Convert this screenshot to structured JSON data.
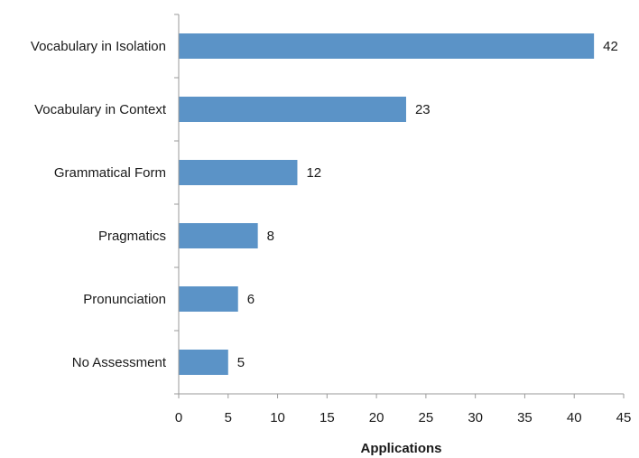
{
  "chart_data": {
    "type": "bar",
    "orientation": "horizontal",
    "categories": [
      "Vocabulary in Isolation",
      "Vocabulary in Context",
      "Grammatical Form",
      "Pragmatics",
      "Pronunciation",
      "No Assessment"
    ],
    "values": [
      42,
      23,
      12,
      8,
      6,
      5
    ],
    "title": "",
    "xlabel": "Applications",
    "ylabel": "",
    "xlim": [
      0,
      45
    ],
    "xticks": [
      0,
      5,
      10,
      15,
      20,
      25,
      30,
      35,
      40,
      45
    ],
    "grid": false,
    "legend": "none",
    "bar_color": "#5b93c7",
    "axis_color": "#9a9a9a"
  }
}
